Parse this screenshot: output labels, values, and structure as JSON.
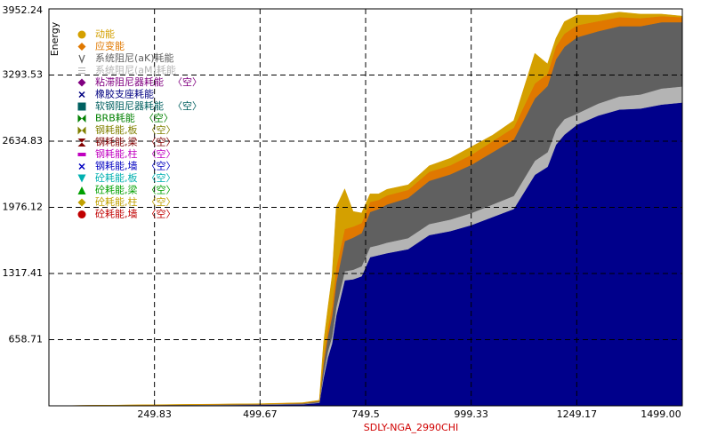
{
  "chart_data": {
    "type": "stacked-area",
    "y_label": "Energy",
    "x_label": "SDLY-NGA_2990CHI",
    "xlim": [
      0,
      1499
    ],
    "ylim": [
      0,
      3952.24
    ],
    "xticks": [
      249.83,
      499.67,
      749.5,
      999.33,
      1249.17,
      {
        "value": 1499,
        "label": "1499.00"
      }
    ],
    "yticks": [
      658.71,
      1317.41,
      1976.12,
      2634.83,
      3293.53,
      3952.24
    ],
    "grid": true,
    "x": [
      0,
      250,
      500,
      600,
      640,
      650,
      660,
      670,
      680,
      700,
      720,
      740,
      760,
      780,
      800,
      850,
      900,
      950,
      1000,
      1050,
      1100,
      1150,
      1180,
      1200,
      1220,
      1250,
      1300,
      1350,
      1400,
      1450,
      1499
    ],
    "series": [
      {
        "color": "#00008b",
        "values": [
          0,
          5,
          10,
          15,
          30,
          280,
          480,
          620,
          900,
          1250,
          1260,
          1290,
          1480,
          1500,
          1520,
          1560,
          1700,
          1740,
          1800,
          1880,
          1960,
          2300,
          2380,
          2600,
          2700,
          2800,
          2890,
          2950,
          2960,
          3000,
          3020
        ]
      },
      {
        "name": "系统阻尼(aM)耗能",
        "color": "#b4b4b4",
        "marker": "lines",
        "values": [
          0,
          1,
          2,
          3,
          5,
          40,
          60,
          70,
          80,
          90,
          95,
          100,
          100,
          100,
          105,
          110,
          110,
          115,
          120,
          125,
          130,
          140,
          145,
          150,
          155,
          110,
          120,
          130,
          140,
          160,
          160
        ]
      },
      {
        "name": "系统阻尼(aK)耗能",
        "color": "#606060",
        "marker": "v",
        "values": [
          0,
          2,
          4,
          6,
          10,
          100,
          150,
          200,
          250,
          300,
          320,
          330,
          350,
          360,
          380,
          400,
          430,
          450,
          480,
          520,
          560,
          620,
          660,
          700,
          720,
          760,
          720,
          700,
          680,
          660,
          640
        ]
      },
      {
        "name": "应变能",
        "color": "#e07800",
        "marker": "diamond",
        "values": [
          0,
          2,
          3,
          4,
          5,
          60,
          80,
          100,
          150,
          120,
          110,
          100,
          100,
          90,
          90,
          80,
          90,
          90,
          100,
          110,
          120,
          150,
          120,
          130,
          130,
          120,
          100,
          90,
          80,
          60,
          50
        ]
      },
      {
        "name": "动能",
        "color": "#d4a000",
        "marker": "circle",
        "values": [
          0,
          1,
          2,
          3,
          5,
          150,
          200,
          300,
          600,
          400,
          150,
          100,
          80,
          60,
          60,
          50,
          60,
          70,
          80,
          60,
          70,
          300,
          100,
          80,
          120,
          100,
          60,
          50,
          40,
          20,
          10
        ]
      }
    ],
    "empty_series": [
      {
        "name": "粘滞阻尼器耗能",
        "note": "〈空〉",
        "color": "#800080",
        "marker": "diamond"
      },
      {
        "name": "橡胶支座耗能",
        "color": "#000080",
        "marker": "x"
      },
      {
        "name": "软钢阻尼器耗能",
        "note": "〈空〉",
        "color": "#006060",
        "marker": "square"
      },
      {
        "name": "BRB耗能",
        "note": "〈空〉",
        "color": "#008000",
        "marker": "bowtie"
      },
      {
        "name": "钢耗能,板",
        "note": "〈空〉",
        "color": "#808000",
        "marker": "bowtie"
      },
      {
        "name": "钢耗能,梁",
        "note": "〈空〉",
        "color": "#800000",
        "marker": "hourglass"
      },
      {
        "name": "钢耗能,柱",
        "note": "〈空〉",
        "color": "#c000c0",
        "marker": "bar"
      },
      {
        "name": "钢耗能,墙",
        "note": "〈空〉",
        "color": "#0000c0",
        "marker": "x"
      },
      {
        "name": "砼耗能,板",
        "note": "〈空〉",
        "color": "#00b0b0",
        "marker": "tri-down"
      },
      {
        "name": "砼耗能,梁",
        "note": "〈空〉",
        "color": "#00a000",
        "marker": "tri-up"
      },
      {
        "name": "砼耗能,柱",
        "note": "〈空〉",
        "color": "#c0a000",
        "marker": "diamond"
      },
      {
        "name": "砼耗能,墙",
        "note": "〈空〉",
        "color": "#c00000",
        "marker": "circle"
      }
    ]
  }
}
